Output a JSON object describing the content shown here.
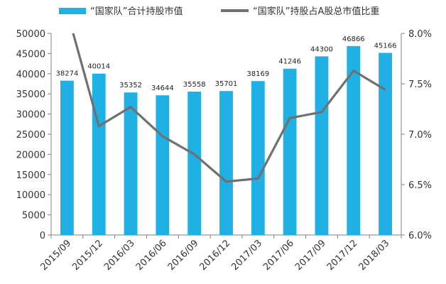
{
  "chart_data": {
    "type": "bar+line",
    "categories": [
      "2015/09",
      "2015/12",
      "2016/03",
      "2016/06",
      "2016/09",
      "2016/12",
      "2017/03",
      "2017/06",
      "2017/09",
      "2017/12",
      "2018/03"
    ],
    "series": [
      {
        "name": "“国家队”合计持股市值",
        "type": "bar",
        "axis": "left",
        "color": "#1fb0e6",
        "values": [
          38274,
          40014,
          35352,
          34644,
          35558,
          35701,
          38169,
          41246,
          44300,
          46866,
          45166
        ]
      },
      {
        "name": "“国家队”持股占A股总市值比重",
        "type": "line",
        "axis": "right",
        "color": "#707070",
        "values": [
          8.22,
          7.08,
          7.27,
          6.98,
          6.8,
          6.53,
          6.56,
          7.16,
          7.22,
          7.63,
          7.44
        ]
      }
    ],
    "y_left": {
      "range": [
        0,
        50000
      ],
      "ticks": [
        "0",
        "5000",
        "10000",
        "15000",
        "20000",
        "25000",
        "30000",
        "35000",
        "40000",
        "45000",
        "50000"
      ]
    },
    "y_right": {
      "range": [
        6.0,
        8.0
      ],
      "ticks": [
        "6.0%",
        "6.5%",
        "7.0%",
        "7.5%",
        "8.0%"
      ]
    },
    "grid": false,
    "legend": "top"
  }
}
